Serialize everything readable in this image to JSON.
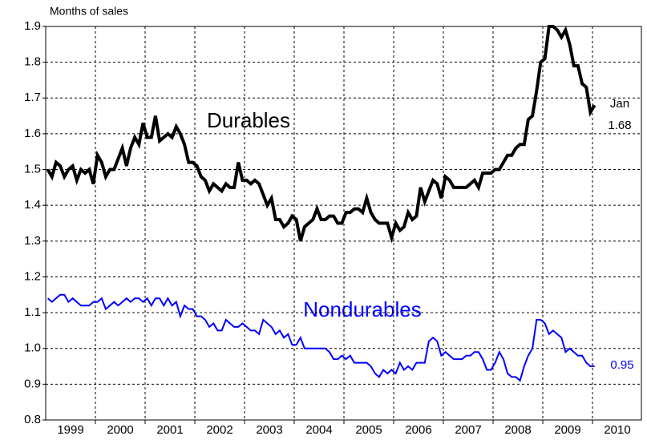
{
  "chart_data": {
    "type": "line",
    "y_label": "Months of sales",
    "x_axis_years": [
      "1999",
      "2000",
      "2001",
      "2002",
      "2003",
      "2004",
      "2005",
      "2006",
      "2007",
      "2008",
      "2009",
      "2010"
    ],
    "ylim": [
      0.8,
      1.9
    ],
    "yticks": [
      0.8,
      0.9,
      {
        "value": 1,
        "label": "1.0"
      },
      1.1,
      1.2,
      1.3,
      1.4,
      1.5,
      1.6,
      1.7,
      1.8,
      1.9
    ],
    "grid": true,
    "series": [
      {
        "name": "Durables",
        "color": "#000000",
        "values": [
          1.5,
          1.48,
          1.52,
          1.51,
          1.48,
          1.5,
          1.51,
          1.47,
          1.5,
          1.49,
          1.5,
          1.46,
          1.54,
          1.52,
          1.48,
          1.5,
          1.5,
          1.53,
          1.56,
          1.51,
          1.56,
          1.59,
          1.57,
          1.63,
          1.59,
          1.59,
          1.65,
          1.58,
          1.59,
          1.6,
          1.59,
          1.62,
          1.6,
          1.57,
          1.52,
          1.52,
          1.51,
          1.48,
          1.47,
          1.44,
          1.46,
          1.45,
          1.44,
          1.46,
          1.45,
          1.45,
          1.52,
          1.47,
          1.47,
          1.46,
          1.47,
          1.46,
          1.43,
          1.4,
          1.42,
          1.36,
          1.36,
          1.34,
          1.35,
          1.37,
          1.36,
          1.3,
          1.34,
          1.35,
          1.36,
          1.39,
          1.36,
          1.36,
          1.37,
          1.37,
          1.35,
          1.35,
          1.38,
          1.38,
          1.39,
          1.39,
          1.38,
          1.42,
          1.38,
          1.36,
          1.35,
          1.35,
          1.35,
          1.31,
          1.35,
          1.33,
          1.34,
          1.38,
          1.36,
          1.37,
          1.45,
          1.41,
          1.44,
          1.47,
          1.46,
          1.42,
          1.48,
          1.47,
          1.45,
          1.45,
          1.45,
          1.45,
          1.46,
          1.47,
          1.45,
          1.49,
          1.49,
          1.49,
          1.5,
          1.5,
          1.52,
          1.54,
          1.54,
          1.56,
          1.57,
          1.57,
          1.64,
          1.65,
          1.72,
          1.8,
          1.81,
          1.9,
          1.9,
          1.89,
          1.87,
          1.89,
          1.85,
          1.79,
          1.79,
          1.74,
          1.73,
          1.66,
          1.68
        ]
      },
      {
        "name": "Nondurables",
        "color": "#0000ff",
        "values": [
          1.14,
          1.13,
          1.14,
          1.15,
          1.15,
          1.13,
          1.14,
          1.13,
          1.12,
          1.12,
          1.12,
          1.13,
          1.13,
          1.14,
          1.11,
          1.12,
          1.13,
          1.12,
          1.13,
          1.14,
          1.13,
          1.14,
          1.14,
          1.13,
          1.14,
          1.12,
          1.14,
          1.14,
          1.12,
          1.14,
          1.12,
          1.13,
          1.09,
          1.12,
          1.11,
          1.11,
          1.09,
          1.09,
          1.08,
          1.06,
          1.07,
          1.05,
          1.05,
          1.08,
          1.07,
          1.06,
          1.06,
          1.07,
          1.06,
          1.05,
          1.05,
          1.04,
          1.08,
          1.07,
          1.06,
          1.04,
          1.05,
          1.03,
          1.04,
          1.01,
          1.01,
          1.03,
          1.0,
          1.0,
          1.0,
          1.0,
          1.0,
          1.0,
          0.99,
          0.97,
          0.97,
          0.98,
          0.97,
          0.98,
          0.96,
          0.96,
          0.96,
          0.96,
          0.95,
          0.93,
          0.92,
          0.94,
          0.93,
          0.94,
          0.93,
          0.96,
          0.94,
          0.95,
          0.94,
          0.96,
          0.96,
          0.96,
          1.02,
          1.03,
          1.02,
          0.98,
          0.99,
          0.98,
          0.97,
          0.97,
          0.97,
          0.98,
          0.98,
          0.99,
          0.99,
          0.97,
          0.94,
          0.94,
          0.96,
          0.99,
          0.97,
          0.93,
          0.92,
          0.92,
          0.91,
          0.95,
          0.98,
          1.0,
          1.08,
          1.08,
          1.07,
          1.04,
          1.05,
          1.04,
          1.03,
          0.99,
          1.0,
          0.99,
          0.98,
          0.98,
          0.96,
          0.95,
          0.95
        ]
      }
    ],
    "annotations": {
      "durables": "Durables",
      "nondurables": "Nondurables",
      "month": "Jan",
      "durables_last": "1.68",
      "nondurables_last": "0.95"
    }
  }
}
